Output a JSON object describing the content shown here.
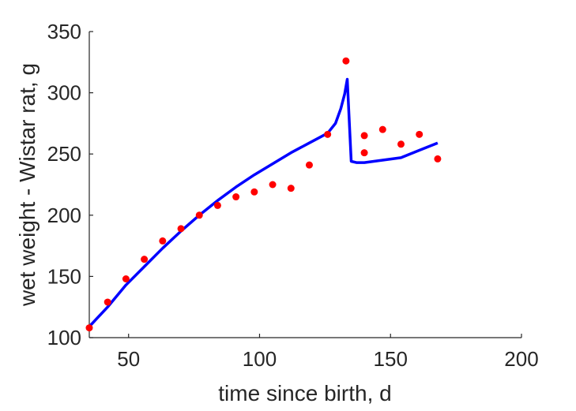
{
  "chart_data": {
    "type": "scatter",
    "xlabel": "time since birth, d",
    "ylabel": "wet weight - Wistar rat, g",
    "xlim": [
      35,
      200
    ],
    "ylim": [
      100,
      350
    ],
    "xticks": [
      50,
      100,
      150,
      200
    ],
    "yticks": [
      100,
      150,
      200,
      250,
      300,
      350
    ],
    "grid": false,
    "series": [
      {
        "kind": "points",
        "color": "#ff0000",
        "x": [
          35,
          42,
          49,
          56,
          63,
          70,
          77,
          84,
          91,
          98,
          105,
          112,
          119,
          126,
          133,
          140,
          140,
          147,
          154,
          161,
          168
        ],
        "y": [
          108,
          129,
          148,
          164,
          179,
          189,
          200,
          208,
          215,
          219,
          225,
          222,
          241,
          266,
          326,
          251,
          265,
          270,
          258,
          266,
          246
        ]
      },
      {
        "kind": "line",
        "color": "#0000ff",
        "x": [
          35,
          42,
          49,
          56,
          63,
          70,
          77,
          84,
          91,
          98,
          105,
          112,
          119,
          126,
          129,
          131,
          132.5,
          133.5,
          135,
          137,
          140,
          147,
          154,
          161,
          168
        ],
        "y": [
          109,
          125,
          143,
          158,
          173,
          187,
          200,
          212,
          223,
          233,
          242,
          251,
          259,
          267,
          275,
          287,
          299,
          311,
          244,
          243,
          243,
          245,
          247,
          253,
          259
        ]
      }
    ]
  }
}
